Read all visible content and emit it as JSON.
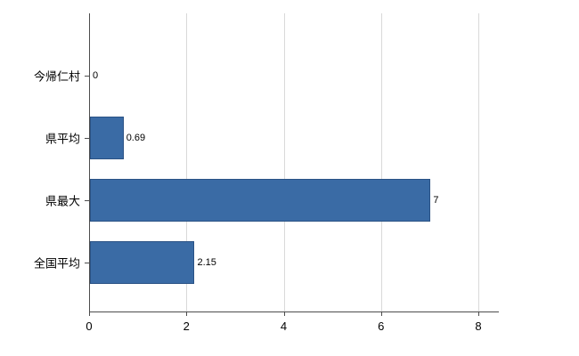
{
  "chart_data": {
    "type": "bar",
    "orientation": "horizontal",
    "title": "",
    "xlabel": "",
    "ylabel": "",
    "categories": [
      "今帰仁村",
      "県平均",
      "県最大",
      "全国平均"
    ],
    "values": [
      0,
      0.69,
      7,
      2.15
    ],
    "value_labels": [
      "0",
      "0.69",
      "7",
      "2.15"
    ],
    "xlim": [
      0,
      8.42
    ],
    "xticks": [
      0,
      2,
      4,
      6,
      8
    ],
    "xtick_labels": [
      "0",
      "2",
      "4",
      "6",
      "8"
    ],
    "grid": true,
    "legend": false,
    "bar_color": "#3a6ba5",
    "bar_border_color": "#2a5285",
    "grid_color": "#d9d9d9",
    "axis_color": "#4d4d4d",
    "text_color": "#000000",
    "background_color": "#ffffff"
  }
}
